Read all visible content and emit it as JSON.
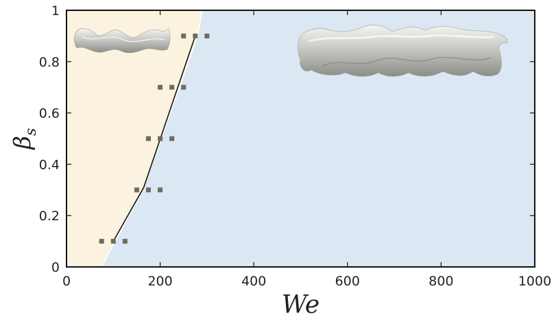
{
  "chart_data": {
    "type": "scatter",
    "xlabel": "We",
    "ylabel_main": "β",
    "ylabel_sub": "s",
    "xlim": [
      0,
      1000
    ],
    "ylim": [
      0,
      1
    ],
    "xticks": [
      "0",
      "200",
      "400",
      "600",
      "800",
      "1000"
    ],
    "yticks": [
      "0",
      "0.2",
      "0.4",
      "0.6",
      "0.8",
      "1"
    ],
    "boundary": {
      "x": [
        75,
        165,
        280,
        290
      ],
      "y": [
        0,
        0.31,
        0.9,
        1.0
      ]
    },
    "boundary_line": {
      "x": [
        100,
        165,
        275
      ],
      "y": [
        0.1,
        0.31,
        0.9
      ]
    },
    "regions": {
      "left_color": "#fbf3df",
      "right_color": "#dce7f4"
    },
    "series": [
      {
        "marker_color": "#6d6d5f",
        "points": [
          [
            75,
            0.1
          ],
          [
            100,
            0.1
          ],
          [
            125,
            0.1
          ],
          [
            150,
            0.3
          ],
          [
            175,
            0.3
          ],
          [
            200,
            0.3
          ],
          [
            175,
            0.5
          ],
          [
            200,
            0.5
          ],
          [
            225,
            0.5
          ],
          [
            200,
            0.7
          ],
          [
            225,
            0.7
          ],
          [
            250,
            0.7
          ],
          [
            250,
            0.9
          ],
          [
            275,
            0.9
          ],
          [
            300,
            0.9
          ]
        ]
      }
    ]
  }
}
